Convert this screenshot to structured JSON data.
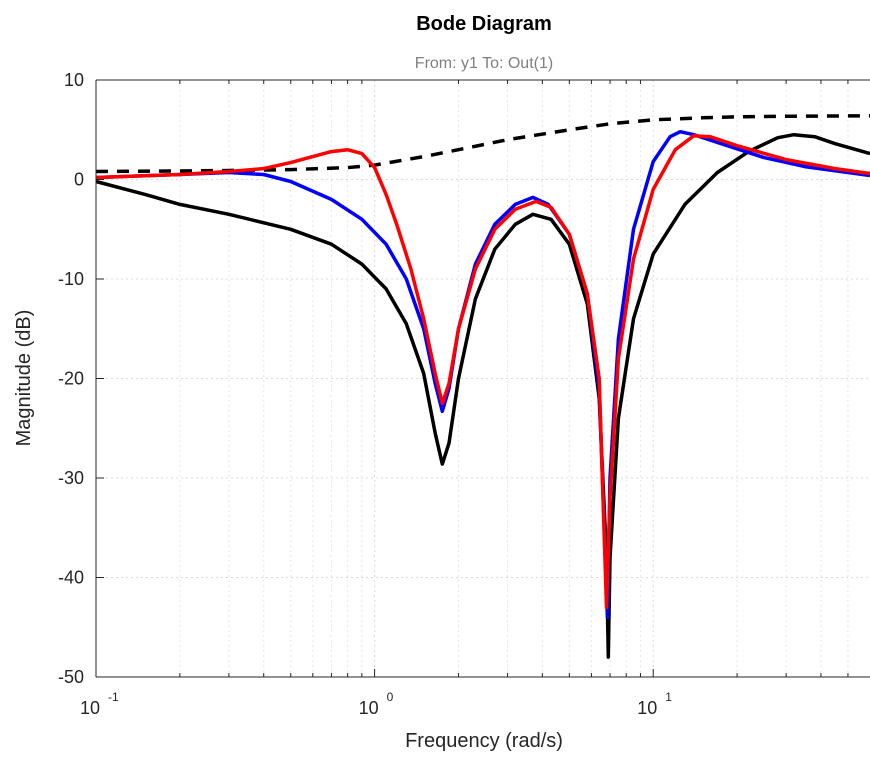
{
  "chart_data": {
    "type": "line",
    "title": "Bode Diagram",
    "subtitle": "From: y1  To: Out(1)",
    "xlabel": "Frequency  (rad/s)",
    "ylabel": "Magnitude (dB)",
    "xscale": "log",
    "xlim": [
      0.1,
      60
    ],
    "ylim": [
      -50,
      10
    ],
    "grid": true,
    "xticks": [
      {
        "value": 0.1,
        "base": "10",
        "exp": "-1"
      },
      {
        "value": 1,
        "base": "10",
        "exp": "0"
      },
      {
        "value": 10,
        "base": "10",
        "exp": "1"
      }
    ],
    "yticks": [
      {
        "value": 10,
        "label": "10"
      },
      {
        "value": 0,
        "label": "0"
      },
      {
        "value": -10,
        "label": "-10"
      },
      {
        "value": -20,
        "label": "-20"
      },
      {
        "value": -30,
        "label": "-30"
      },
      {
        "value": -40,
        "label": "-40"
      },
      {
        "value": -50,
        "label": "-50"
      }
    ],
    "series": [
      {
        "color": "#000000",
        "style": "dashed",
        "points": [
          [
            0.1,
            0.8
          ],
          [
            0.2,
            0.85
          ],
          [
            0.3,
            0.9
          ],
          [
            0.5,
            1.0
          ],
          [
            0.8,
            1.2
          ],
          [
            1.0,
            1.45
          ],
          [
            1.5,
            2.3
          ],
          [
            2.0,
            3.0
          ],
          [
            3.0,
            4.0
          ],
          [
            5.0,
            5.0
          ],
          [
            7.0,
            5.6
          ],
          [
            10.0,
            6.0
          ],
          [
            15.0,
            6.2
          ],
          [
            20.0,
            6.3
          ],
          [
            30.0,
            6.35
          ],
          [
            60.0,
            6.4
          ]
        ]
      },
      {
        "color": "#000000",
        "style": "solid",
        "points": [
          [
            0.1,
            -0.2
          ],
          [
            0.15,
            -1.5
          ],
          [
            0.2,
            -2.5
          ],
          [
            0.3,
            -3.5
          ],
          [
            0.5,
            -5.0
          ],
          [
            0.7,
            -6.5
          ],
          [
            0.9,
            -8.5
          ],
          [
            1.1,
            -11.0
          ],
          [
            1.3,
            -14.5
          ],
          [
            1.5,
            -19.5
          ],
          [
            1.65,
            -25.5
          ],
          [
            1.75,
            -28.6
          ],
          [
            1.85,
            -26.5
          ],
          [
            2.0,
            -20.0
          ],
          [
            2.3,
            -12.0
          ],
          [
            2.7,
            -7.0
          ],
          [
            3.2,
            -4.5
          ],
          [
            3.7,
            -3.5
          ],
          [
            4.3,
            -4.0
          ],
          [
            5.0,
            -6.5
          ],
          [
            5.8,
            -12.5
          ],
          [
            6.4,
            -22.0
          ],
          [
            6.8,
            -38.0
          ],
          [
            6.9,
            -48.0
          ],
          [
            7.0,
            -38.0
          ],
          [
            7.5,
            -24.0
          ],
          [
            8.5,
            -14.0
          ],
          [
            10.0,
            -7.5
          ],
          [
            13.0,
            -2.5
          ],
          [
            17.0,
            0.7
          ],
          [
            22.0,
            2.8
          ],
          [
            28.0,
            4.2
          ],
          [
            32.0,
            4.5
          ],
          [
            38.0,
            4.3
          ],
          [
            45.0,
            3.6
          ],
          [
            60.0,
            2.6
          ]
        ]
      },
      {
        "color": "#0000ff",
        "style": "solid",
        "points": [
          [
            0.1,
            0.2
          ],
          [
            0.2,
            0.5
          ],
          [
            0.3,
            0.7
          ],
          [
            0.4,
            0.5
          ],
          [
            0.5,
            -0.2
          ],
          [
            0.7,
            -2.0
          ],
          [
            0.9,
            -4.0
          ],
          [
            1.1,
            -6.5
          ],
          [
            1.3,
            -10.0
          ],
          [
            1.5,
            -15.0
          ],
          [
            1.65,
            -20.5
          ],
          [
            1.75,
            -23.3
          ],
          [
            1.85,
            -21.0
          ],
          [
            2.0,
            -15.0
          ],
          [
            2.3,
            -8.5
          ],
          [
            2.7,
            -4.5
          ],
          [
            3.2,
            -2.5
          ],
          [
            3.7,
            -1.8
          ],
          [
            4.2,
            -2.5
          ],
          [
            5.0,
            -5.5
          ],
          [
            5.8,
            -11.5
          ],
          [
            6.4,
            -21.0
          ],
          [
            6.85,
            -44.0
          ],
          [
            7.0,
            -30.0
          ],
          [
            7.5,
            -16.0
          ],
          [
            8.5,
            -5.0
          ],
          [
            10.0,
            1.8
          ],
          [
            11.5,
            4.3
          ],
          [
            12.5,
            4.8
          ],
          [
            14.0,
            4.5
          ],
          [
            18.0,
            3.5
          ],
          [
            25.0,
            2.2
          ],
          [
            35.0,
            1.3
          ],
          [
            60.0,
            0.4
          ]
        ]
      },
      {
        "color": "#ff0000",
        "style": "solid",
        "points": [
          [
            0.1,
            0.2
          ],
          [
            0.2,
            0.5
          ],
          [
            0.3,
            0.8
          ],
          [
            0.4,
            1.1
          ],
          [
            0.5,
            1.7
          ],
          [
            0.6,
            2.3
          ],
          [
            0.7,
            2.8
          ],
          [
            0.8,
            3.0
          ],
          [
            0.9,
            2.6
          ],
          [
            1.0,
            1.2
          ],
          [
            1.1,
            -1.5
          ],
          [
            1.2,
            -4.5
          ],
          [
            1.35,
            -9.0
          ],
          [
            1.5,
            -14.0
          ],
          [
            1.65,
            -19.5
          ],
          [
            1.75,
            -22.5
          ],
          [
            1.85,
            -20.5
          ],
          [
            2.0,
            -15.0
          ],
          [
            2.3,
            -9.0
          ],
          [
            2.7,
            -5.0
          ],
          [
            3.2,
            -3.0
          ],
          [
            3.8,
            -2.2
          ],
          [
            4.3,
            -2.8
          ],
          [
            5.0,
            -5.5
          ],
          [
            5.8,
            -11.5
          ],
          [
            6.4,
            -20.0
          ],
          [
            6.8,
            -43.0
          ],
          [
            7.0,
            -32.0
          ],
          [
            7.5,
            -18.0
          ],
          [
            8.5,
            -8.0
          ],
          [
            10.0,
            -1.0
          ],
          [
            12.0,
            3.0
          ],
          [
            14.0,
            4.4
          ],
          [
            16.0,
            4.3
          ],
          [
            20.0,
            3.4
          ],
          [
            30.0,
            2.0
          ],
          [
            45.0,
            1.1
          ],
          [
            60.0,
            0.6
          ]
        ]
      }
    ]
  }
}
